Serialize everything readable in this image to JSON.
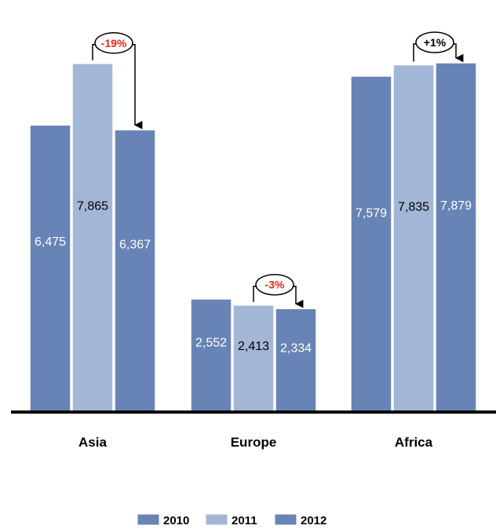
{
  "chart_data": {
    "type": "bar",
    "categories": [
      "Asia",
      "Europe",
      "Africa"
    ],
    "series": [
      {
        "name": "2010",
        "values": [
          6475,
          2552,
          7579
        ],
        "labels": [
          "6,475",
          "2,552",
          "7,579"
        ]
      },
      {
        "name": "2011",
        "values": [
          7865,
          2413,
          7835
        ],
        "labels": [
          "7,865",
          "2,413",
          "7,835"
        ]
      },
      {
        "name": "2012",
        "values": [
          6367,
          2334,
          7879
        ],
        "labels": [
          "6,367",
          "2,334",
          "7,879"
        ]
      }
    ],
    "annotations": [
      "-19%",
      "-3%",
      "+1%"
    ],
    "annotation_colors": [
      "#e8261c",
      "#e8261c",
      "#000000"
    ],
    "colors": [
      "#6883b6",
      "#a3b6d6",
      "#6883b6"
    ],
    "label_colors": [
      "#ffffff",
      "#000000",
      "#ffffff"
    ],
    "legend_position": "bottom",
    "grid": false,
    "ylim": [
      0,
      8500
    ]
  }
}
